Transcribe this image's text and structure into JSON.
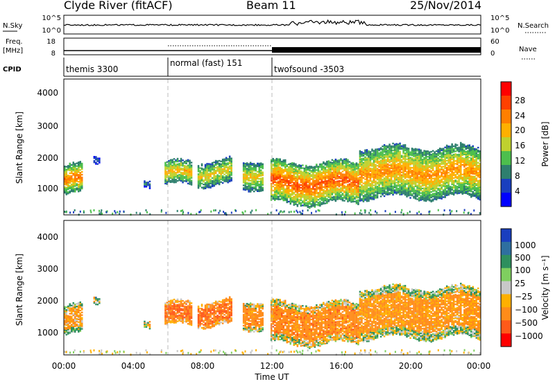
{
  "header": {
    "station": "Clyde River (fitACF)",
    "beam": "Beam 11",
    "date": "25/Nov/2014"
  },
  "noise_panel": {
    "left_label": "N.Sky",
    "right_label": "N.Search",
    "left_ticks": [
      "10^5",
      "10^0"
    ],
    "right_ticks": [
      "10^5",
      "10^0"
    ]
  },
  "freq_panel": {
    "left_label_1": "Freq.",
    "left_label_2": "[MHz]",
    "right_label": "Nave",
    "left_ticks": [
      "18",
      "8"
    ],
    "right_ticks": [
      "60",
      "0"
    ],
    "cpid_label": "CPID"
  },
  "cpid_segments": [
    {
      "label": "themis 3300",
      "start_hour": 0
    },
    {
      "label": "normal (fast) 151",
      "start_hour": 6
    },
    {
      "label": "twofsound -3503",
      "start_hour": 12
    }
  ],
  "power_panel": {
    "ylabel": "Slant Range [km]",
    "yticks": [
      "4000",
      "3000",
      "2000",
      "1000"
    ],
    "colorbar_label": "Power [dB]",
    "colorbar_ticks": [
      "28",
      "24",
      "20",
      "16",
      "12",
      "8",
      "4"
    ],
    "colors": [
      "#0000ff",
      "#1a3fbf",
      "#2e7f6e",
      "#4dbf4d",
      "#bfd12e",
      "#ffb000",
      "#ff7f00",
      "#ff4000",
      "#ff0000"
    ]
  },
  "velocity_panel": {
    "ylabel": "Slant Range [km]",
    "yticks": [
      "4000",
      "3000",
      "2000",
      "1000"
    ],
    "colorbar_label": "Velocity [m s⁻¹]",
    "colorbar_ticks": [
      "1000",
      "500",
      "100",
      "25",
      "−25",
      "−100",
      "−500",
      "−1000"
    ],
    "colors": [
      "#1a3fbf",
      "#2e6fa0",
      "#2e8f5e",
      "#7fcf5f",
      "#c8c8c8",
      "#ffb000",
      "#ff8c1a",
      "#ff5a1a",
      "#ff0000"
    ]
  },
  "x_axis": {
    "label": "Time UT",
    "ticks": [
      "00:00",
      "04:00",
      "08:00",
      "12:00",
      "16:00",
      "20:00",
      "00:00"
    ]
  },
  "chart_data": {
    "type": "heatmap",
    "title": "Clyde River (fitACF)",
    "subtitle": "Beam 11 — 25/Nov/2014",
    "xlabel": "Time UT",
    "ylabel": "Slant Range [km]",
    "xlim_hours": [
      0,
      24
    ],
    "ylim_km": [
      180,
      4600
    ],
    "power_db_range": [
      0,
      30
    ],
    "velocity_range": [
      -1000,
      1000
    ],
    "cpid_transitions_hours": [
      6,
      12
    ],
    "regions": [
      {
        "t_start": 0.0,
        "t_end": 1.0,
        "range_low": 800,
        "range_high": 1800,
        "power_db": 24,
        "velocity": -100
      },
      {
        "t_start": 1.7,
        "t_end": 2.1,
        "range_low": 1900,
        "range_high": 2200,
        "power_db": 6,
        "velocity": 25
      },
      {
        "t_start": 4.6,
        "t_end": 4.9,
        "range_low": 1100,
        "range_high": 1400,
        "power_db": 8,
        "velocity": -25
      },
      {
        "t_start": 5.8,
        "t_end": 7.3,
        "range_low": 1100,
        "range_high": 1900,
        "power_db": 20,
        "velocity": -300
      },
      {
        "t_start": 7.7,
        "t_end": 9.6,
        "range_low": 1100,
        "range_high": 1950,
        "power_db": 18,
        "velocity": -300
      },
      {
        "t_start": 10.3,
        "t_end": 11.4,
        "range_low": 1000,
        "range_high": 2000,
        "power_db": 18,
        "velocity": -200
      },
      {
        "t_start": 11.9,
        "t_end": 17.0,
        "range_low": 500,
        "range_high": 1900,
        "power_db": 26,
        "velocity": -200
      },
      {
        "t_start": 17.0,
        "t_end": 24.0,
        "range_low": 700,
        "range_high": 2400,
        "power_db": 22,
        "velocity": -150
      }
    ]
  }
}
